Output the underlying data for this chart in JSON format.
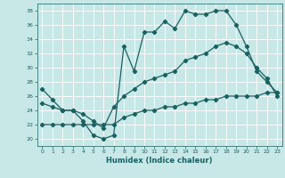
{
  "xlabel": "Humidex (Indice chaleur)",
  "xlim": [
    -0.5,
    23.5
  ],
  "ylim": [
    19,
    39
  ],
  "yticks": [
    20,
    22,
    24,
    26,
    28,
    30,
    32,
    34,
    36,
    38
  ],
  "xticks": [
    0,
    1,
    2,
    3,
    4,
    5,
    6,
    7,
    8,
    9,
    10,
    11,
    12,
    13,
    14,
    15,
    16,
    17,
    18,
    19,
    20,
    21,
    22,
    23
  ],
  "bg_color": "#c8e8e8",
  "line_color": "#1a6060",
  "grid_color": "#ffffff",
  "lines": [
    {
      "x": [
        0,
        1,
        2,
        3,
        4,
        5,
        6,
        7,
        8,
        9,
        10,
        11,
        12,
        13,
        14,
        15,
        16,
        17,
        18,
        19,
        20,
        21,
        22,
        23
      ],
      "y": [
        27,
        25.5,
        24,
        24,
        22.5,
        20.5,
        20,
        20.5,
        33,
        29.5,
        35,
        35,
        36.5,
        35.5,
        38,
        37.5,
        37.5,
        38,
        38,
        36,
        33,
        29.5,
        28,
        26.5
      ]
    },
    {
      "x": [
        0,
        1,
        2,
        3,
        4,
        5,
        6,
        7,
        8,
        9,
        10,
        11,
        12,
        13,
        14,
        15,
        16,
        17,
        18,
        19,
        20,
        21,
        22,
        23
      ],
      "y": [
        25,
        24.5,
        24,
        24,
        23.5,
        22.5,
        21.5,
        24.5,
        26,
        27,
        28,
        28.5,
        29,
        29.5,
        31,
        31.5,
        32,
        33,
        33.5,
        33,
        32,
        30,
        28.5,
        26
      ]
    },
    {
      "x": [
        0,
        1,
        2,
        3,
        4,
        5,
        6,
        7,
        8,
        9,
        10,
        11,
        12,
        13,
        14,
        15,
        16,
        17,
        18,
        19,
        20,
        21,
        22,
        23
      ],
      "y": [
        22,
        22,
        22,
        22,
        22,
        22,
        22,
        22,
        23,
        23.5,
        24,
        24,
        24.5,
        24.5,
        25,
        25,
        25.5,
        25.5,
        26,
        26,
        26,
        26,
        26.5,
        26.5
      ]
    }
  ]
}
